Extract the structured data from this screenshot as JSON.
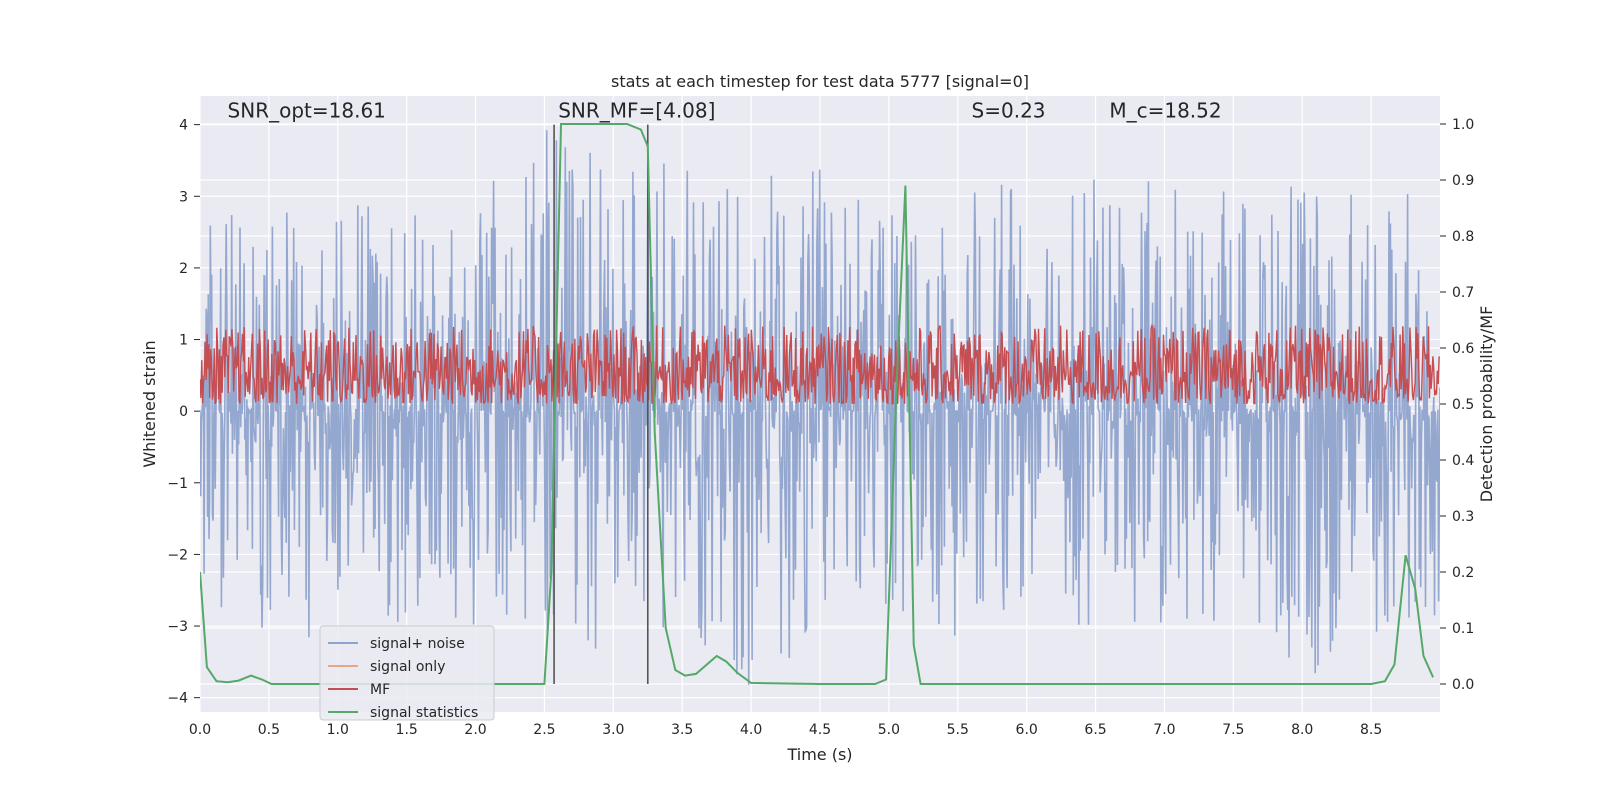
{
  "chart_data": {
    "type": "line",
    "title": "stats at each timestep for test data 5777 [signal=0]",
    "xlabel": "Time (s)",
    "ylabel_left": "Whitened strain",
    "ylabel_right": "Detection probability/MF",
    "xlim": [
      0,
      9
    ],
    "ylim_left": [
      -4.2,
      4.4
    ],
    "ylim_right": [
      -0.05,
      1.05
    ],
    "x_ticks": [
      0.0,
      0.5,
      1.0,
      1.5,
      2.0,
      2.5,
      3.0,
      3.5,
      4.0,
      4.5,
      5.0,
      5.5,
      6.0,
      6.5,
      7.0,
      7.5,
      8.0,
      8.5
    ],
    "x_tick_labels": [
      "0.0",
      "0.5",
      "1.0",
      "1.5",
      "2.0",
      "2.5",
      "3.0",
      "3.5",
      "4.0",
      "4.5",
      "5.0",
      "5.5",
      "6.0",
      "6.5",
      "7.0",
      "7.5",
      "8.0",
      "8.5"
    ],
    "y_left_ticks": [
      -4,
      -3,
      -2,
      -1,
      0,
      1,
      2,
      3,
      4
    ],
    "y_left_tick_labels": [
      "−4",
      "−3",
      "−2",
      "−1",
      "0",
      "1",
      "2",
      "3",
      "4"
    ],
    "y_right_ticks": [
      0.0,
      0.1,
      0.2,
      0.3,
      0.4,
      0.5,
      0.6,
      0.7,
      0.8,
      0.9,
      1.0
    ],
    "y_right_tick_labels": [
      "0.0",
      "0.1",
      "0.2",
      "0.3",
      "0.4",
      "0.5",
      "0.6",
      "0.7",
      "0.8",
      "0.9",
      "1.0"
    ],
    "grid": true,
    "legend_position": "lower-left",
    "annotations": [
      {
        "text": "SNR_opt=18.61",
        "x": 0.2,
        "y": 4.1
      },
      {
        "text": "SNR_MF=[4.08]",
        "x": 2.6,
        "y": 4.1
      },
      {
        "text": "S=0.23",
        "x": 5.6,
        "y": 4.1
      },
      {
        "text": "M_c=18.52",
        "x": 6.6,
        "y": 4.1
      }
    ],
    "vertical_lines_x": [
      2.57,
      3.25
    ],
    "series": [
      {
        "name": "signal+ noise",
        "color": "#8fa3cc",
        "axis": "left",
        "kind": "noise",
        "envelope_x": [
          0,
          0.5,
          1.0,
          1.5,
          2.0,
          2.5,
          3.0,
          3.5,
          4.0,
          4.5,
          5.0,
          5.5,
          6.0,
          6.5,
          7.0,
          7.5,
          8.0,
          8.5,
          9.0
        ],
        "envelope_max": [
          2.6,
          2.9,
          3.1,
          3.2,
          3.0,
          4.0,
          3.8,
          3.5,
          3.3,
          3.5,
          3.2,
          3.1,
          3.2,
          3.3,
          3.2,
          3.1,
          3.2,
          3.1,
          3.3
        ],
        "envelope_min": [
          -2.5,
          -3.3,
          -3.2,
          -3.1,
          -3.2,
          -3.4,
          -3.3,
          -3.0,
          -3.9,
          -3.2,
          -2.9,
          -3.2,
          -2.9,
          -3.1,
          -3.0,
          -3.0,
          -3.8,
          -3.1,
          -2.9
        ]
      },
      {
        "name": "signal only",
        "color": "#e8a58a",
        "axis": "left",
        "kind": "line",
        "x": [],
        "y": []
      },
      {
        "name": "MF",
        "color": "#c44e52",
        "axis": "right",
        "kind": "noise",
        "center": 0.53,
        "spread_max": 0.64,
        "spread_min": 0.5
      },
      {
        "name": "signal statistics",
        "color": "#55a868",
        "axis": "right",
        "kind": "line",
        "x": [
          0.0,
          0.05,
          0.12,
          0.2,
          0.28,
          0.37,
          0.45,
          0.52,
          1.0,
          1.5,
          2.0,
          2.45,
          2.5,
          2.55,
          2.62,
          2.7,
          3.0,
          3.1,
          3.2,
          3.25,
          3.3,
          3.38,
          3.45,
          3.52,
          3.6,
          3.68,
          3.75,
          3.82,
          3.9,
          4.0,
          4.5,
          4.9,
          4.98,
          5.05,
          5.12,
          5.18,
          5.23,
          5.3,
          6.0,
          7.0,
          8.0,
          8.5,
          8.6,
          8.67,
          8.75,
          8.82,
          8.88,
          8.95
        ],
        "y": [
          0.2,
          0.03,
          0.005,
          0.003,
          0.006,
          0.015,
          0.008,
          0.0,
          0.0,
          0.0,
          0.0,
          0.0,
          0.0,
          0.2,
          1.0,
          1.0,
          1.0,
          1.0,
          0.99,
          0.96,
          0.45,
          0.1,
          0.025,
          0.015,
          0.018,
          0.035,
          0.05,
          0.04,
          0.02,
          0.002,
          0.0,
          0.0,
          0.008,
          0.5,
          0.89,
          0.07,
          0.0,
          0.0,
          0.0,
          0.0,
          0.0,
          0.0,
          0.005,
          0.035,
          0.23,
          0.17,
          0.05,
          0.012
        ]
      }
    ]
  }
}
